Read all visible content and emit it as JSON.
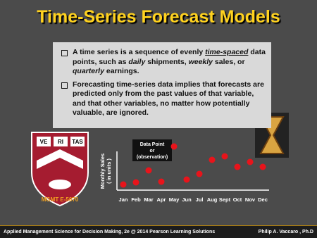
{
  "title": "Time-Series Forecast Models",
  "bullets": [
    {
      "parts": [
        "A time series is a sequence of evenly ",
        "time-spaced",
        " data points, such as ",
        "daily",
        " shipments, ",
        "weekly",
        " sales, or ",
        "quarterly",
        " earnings."
      ]
    },
    {
      "parts": [
        "Forecasting time-series data implies that forecasts are predicted only from the past values of that variable, and that other variables, no matter how potentially valuable, are ignored."
      ]
    }
  ],
  "crest": [
    "VE",
    "RI",
    "TAS"
  ],
  "course": "MGMT E-5070",
  "footer": {
    "left": "Applied Management Science for Decision Making, 2e @ 2014 Pearson Learning Solutions",
    "right": "Philip A. Vaccaro , Ph.D"
  },
  "chart_data": {
    "type": "scatter",
    "y_label": [
      "Monthly Sales",
      "( in units )"
    ],
    "annotation": [
      "Data Point",
      "or",
      "(observation)"
    ],
    "categories": [
      "Jan",
      "Feb",
      "Mar",
      "Apr",
      "May",
      "Jun",
      "Jul",
      "Aug",
      "Sept",
      "Oct",
      "Nov",
      "Dec"
    ],
    "values": [
      8,
      11,
      28,
      12,
      62,
      15,
      23,
      43,
      48,
      33,
      40,
      33
    ],
    "ylim": [
      0,
      65
    ],
    "color": "#e8141b"
  }
}
